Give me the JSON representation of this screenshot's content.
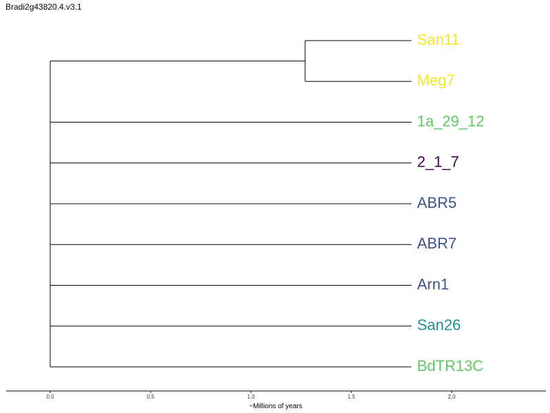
{
  "title": "Bradi2g43820.4.v3.1",
  "axis": {
    "label": "~Millions of years",
    "ticks": [
      "0.0",
      "0.5",
      "1.0",
      "1.5",
      "2.0"
    ]
  },
  "tree": {
    "leaves": [
      {
        "name": "San11",
        "color": "#f6e62b",
        "branch_length": 1.8
      },
      {
        "name": "Meg7",
        "color": "#f6e62b",
        "branch_length": 1.8
      },
      {
        "name": "1a_29_12",
        "color": "#5ec962",
        "branch_length": 1.8
      },
      {
        "name": "2_1_7",
        "color": "#440154",
        "branch_length": 1.8
      },
      {
        "name": "ABR5",
        "color": "#3b528b",
        "branch_length": 1.8
      },
      {
        "name": "ABR7",
        "color": "#3b528b",
        "branch_length": 1.8
      },
      {
        "name": "Arn1",
        "color": "#3b528b",
        "branch_length": 1.8
      },
      {
        "name": "San26",
        "color": "#21918c",
        "branch_length": 1.8
      },
      {
        "name": "BdTR13C",
        "color": "#5ec962",
        "branch_length": 1.8
      }
    ],
    "clade_san11_meg7_node_age": 1.27
  },
  "colors": {
    "yellow": "#f6e62b",
    "light_green": "#5ec962",
    "dark_purple": "#440154",
    "blue": "#3b528b",
    "teal": "#21918c",
    "line": "#000000"
  }
}
